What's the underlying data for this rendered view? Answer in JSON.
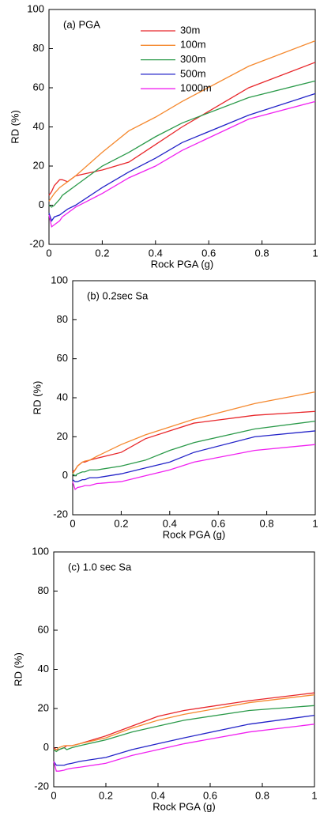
{
  "chart_data": [
    {
      "type": "line",
      "annotation": "(a) PGA",
      "xlabel": "Rock PGA (g)",
      "ylabel": "RD (%)",
      "x": [
        0,
        0.01,
        0.02,
        0.04,
        0.05,
        0.07,
        0.1,
        0.2,
        0.3,
        0.4,
        0.5,
        0.75,
        1
      ],
      "xlim": [
        0,
        1
      ],
      "xticks": [
        0,
        0.2,
        0.4,
        0.6,
        0.8,
        1
      ],
      "ylim": [
        -20,
        100
      ],
      "yticks": [
        -20,
        0,
        20,
        40,
        60,
        80,
        100
      ],
      "legend": "upper-center",
      "series": [
        {
          "name": "30m",
          "color": "#e8262a",
          "values": [
            5,
            7,
            10,
            13,
            13,
            12,
            15,
            18,
            22,
            31,
            40,
            60,
            73
          ]
        },
        {
          "name": "100m",
          "color": "#f5892f",
          "values": [
            2,
            4,
            6,
            9,
            10,
            12,
            15,
            27,
            38,
            45,
            53,
            71,
            84
          ]
        },
        {
          "name": "300m",
          "color": "#2b9a4a",
          "values": [
            0,
            -1,
            0,
            3,
            5,
            7,
            10,
            20,
            27,
            35,
            42,
            55,
            63.5
          ]
        },
        {
          "name": "500m",
          "color": "#2323c8",
          "values": [
            -4,
            -8,
            -6,
            -5,
            -4,
            -2,
            0,
            9,
            17,
            24,
            32,
            46,
            57
          ]
        },
        {
          "name": "1000m",
          "color": "#f020f0",
          "values": [
            -5,
            -11,
            -10,
            -8,
            -6,
            -4,
            -1,
            6,
            14,
            20,
            28,
            44,
            53
          ]
        }
      ]
    },
    {
      "type": "line",
      "annotation": "(b) 0.2sec Sa",
      "xlabel": "Rock PGA (g)",
      "ylabel": "RD (%)",
      "x": [
        0,
        0.01,
        0.02,
        0.04,
        0.05,
        0.07,
        0.1,
        0.2,
        0.3,
        0.4,
        0.5,
        0.75,
        1
      ],
      "xlim": [
        0,
        1
      ],
      "xticks": [
        0,
        0.2,
        0.4,
        0.6,
        0.8,
        1
      ],
      "ylim": [
        -20,
        100
      ],
      "yticks": [
        -20,
        0,
        20,
        40,
        60,
        80,
        100
      ],
      "series": [
        {
          "color": "#e8262a",
          "values": [
            2,
            3,
            5,
            7,
            7,
            8,
            9,
            12,
            19,
            23,
            27,
            31,
            33
          ]
        },
        {
          "color": "#f5892f",
          "values": [
            1,
            3,
            5,
            7,
            7.5,
            8,
            10,
            16,
            21,
            25,
            29,
            37,
            43
          ]
        },
        {
          "color": "#2b9a4a",
          "values": [
            1,
            0,
            1,
            2,
            2,
            3,
            3,
            5,
            8,
            13,
            17,
            24,
            28
          ]
        },
        {
          "color": "#2323c8",
          "values": [
            -2,
            -3,
            -3,
            -2,
            -2,
            -1,
            -1,
            1,
            4,
            7,
            12,
            20,
            23
          ]
        },
        {
          "color": "#f020f0",
          "values": [
            -3,
            -7,
            -6,
            -5.5,
            -5,
            -5,
            -4,
            -3,
            0,
            3,
            7,
            13,
            16
          ]
        }
      ]
    },
    {
      "type": "line",
      "annotation": "(c) 1.0 sec Sa",
      "xlabel": "Rock PGA (g)",
      "ylabel": "RD (%)",
      "x": [
        0,
        0.01,
        0.02,
        0.04,
        0.05,
        0.07,
        0.1,
        0.2,
        0.3,
        0.4,
        0.5,
        0.75,
        1
      ],
      "xlim": [
        0,
        1
      ],
      "xticks": [
        0,
        0.2,
        0.4,
        0.6,
        0.8,
        1
      ],
      "ylim": [
        -20,
        100
      ],
      "yticks": [
        -20,
        0,
        20,
        40,
        60,
        80,
        100
      ],
      "series": [
        {
          "color": "#e8262a",
          "values": [
            0,
            -1,
            -1,
            0,
            1,
            1,
            2,
            6,
            11,
            16,
            19,
            24,
            28
          ]
        },
        {
          "color": "#f5892f",
          "values": [
            -1,
            -1,
            0,
            1,
            1,
            1,
            2,
            5,
            10,
            14,
            17,
            23,
            27
          ]
        },
        {
          "color": "#2b9a4a",
          "values": [
            -1,
            -2,
            -1,
            0,
            -1,
            0,
            1,
            4,
            8,
            11,
            14,
            19,
            21.5
          ]
        },
        {
          "color": "#2323c8",
          "values": [
            -7,
            -9,
            -9,
            -9,
            -8.5,
            -8,
            -7,
            -5,
            -1,
            2,
            5,
            12,
            16.5
          ]
        },
        {
          "color": "#f020f0",
          "values": [
            -7,
            -12,
            -12,
            -11.5,
            -11,
            -10.5,
            -10,
            -8,
            -4,
            -1,
            2,
            8,
            12
          ]
        }
      ]
    }
  ]
}
